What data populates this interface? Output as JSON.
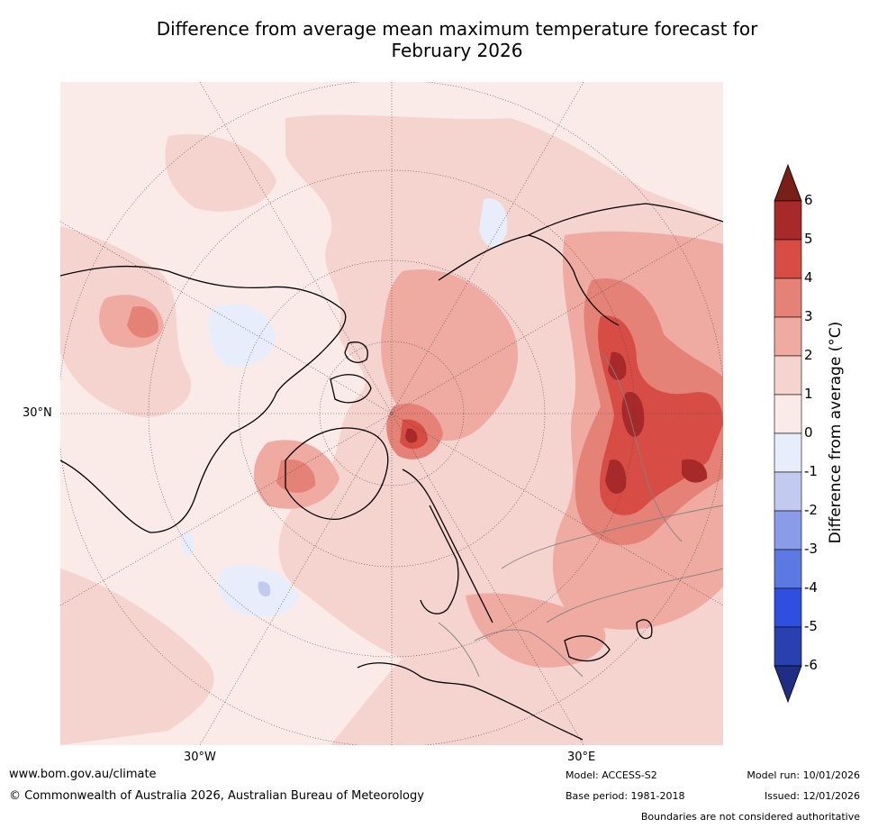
{
  "title": {
    "line1": "Difference from average mean maximum temperature forecast for",
    "line2": "February 2026"
  },
  "map": {
    "lat_label": "30°N",
    "lon_label_left": "30°W",
    "lon_label_right": "30°E"
  },
  "colorbar": {
    "label": "Difference from average (°C)",
    "ticks": [
      "6",
      "5",
      "4",
      "3",
      "2",
      "1",
      "0",
      "-1",
      "-2",
      "-3",
      "-4",
      "-5",
      "-6"
    ],
    "bins": [
      {
        "range": "5 to 6",
        "color": "#a8292a"
      },
      {
        "range": "4 to 5",
        "color": "#d74c44"
      },
      {
        "range": "3 to 4",
        "color": "#e58278"
      },
      {
        "range": "2 to 3",
        "color": "#efaaa2"
      },
      {
        "range": "1 to 2",
        "color": "#f5d3cf"
      },
      {
        "range": "0 to 1",
        "color": "#fbebe8"
      },
      {
        "range": "-1 to 0",
        "color": "#e8edfb"
      },
      {
        "range": "-2 to -1",
        "color": "#c2caf0"
      },
      {
        "range": "-3 to -2",
        "color": "#8a9ce8"
      },
      {
        "range": "-4 to -3",
        "color": "#5c78e3"
      },
      {
        "range": "-5 to -4",
        "color": "#2e4fe0"
      },
      {
        "range": "-6 to -5",
        "color": "#2a3fb0"
      }
    ],
    "top_arrow_color": "#7a1e18",
    "bottom_arrow_color": "#1f2d85"
  },
  "footer": {
    "url": "www.bom.gov.au/climate",
    "copyright": "© Commonwealth of Australia 2026, Australian Bureau of Meteorology",
    "model": "Model: ACCESS-S2",
    "base_period": "Base period: 1981-2018",
    "model_run": "Model run: 10/01/2026",
    "issued": "Issued: 12/01/2026",
    "disclaimer": "Boundaries are not considered authoritative"
  }
}
